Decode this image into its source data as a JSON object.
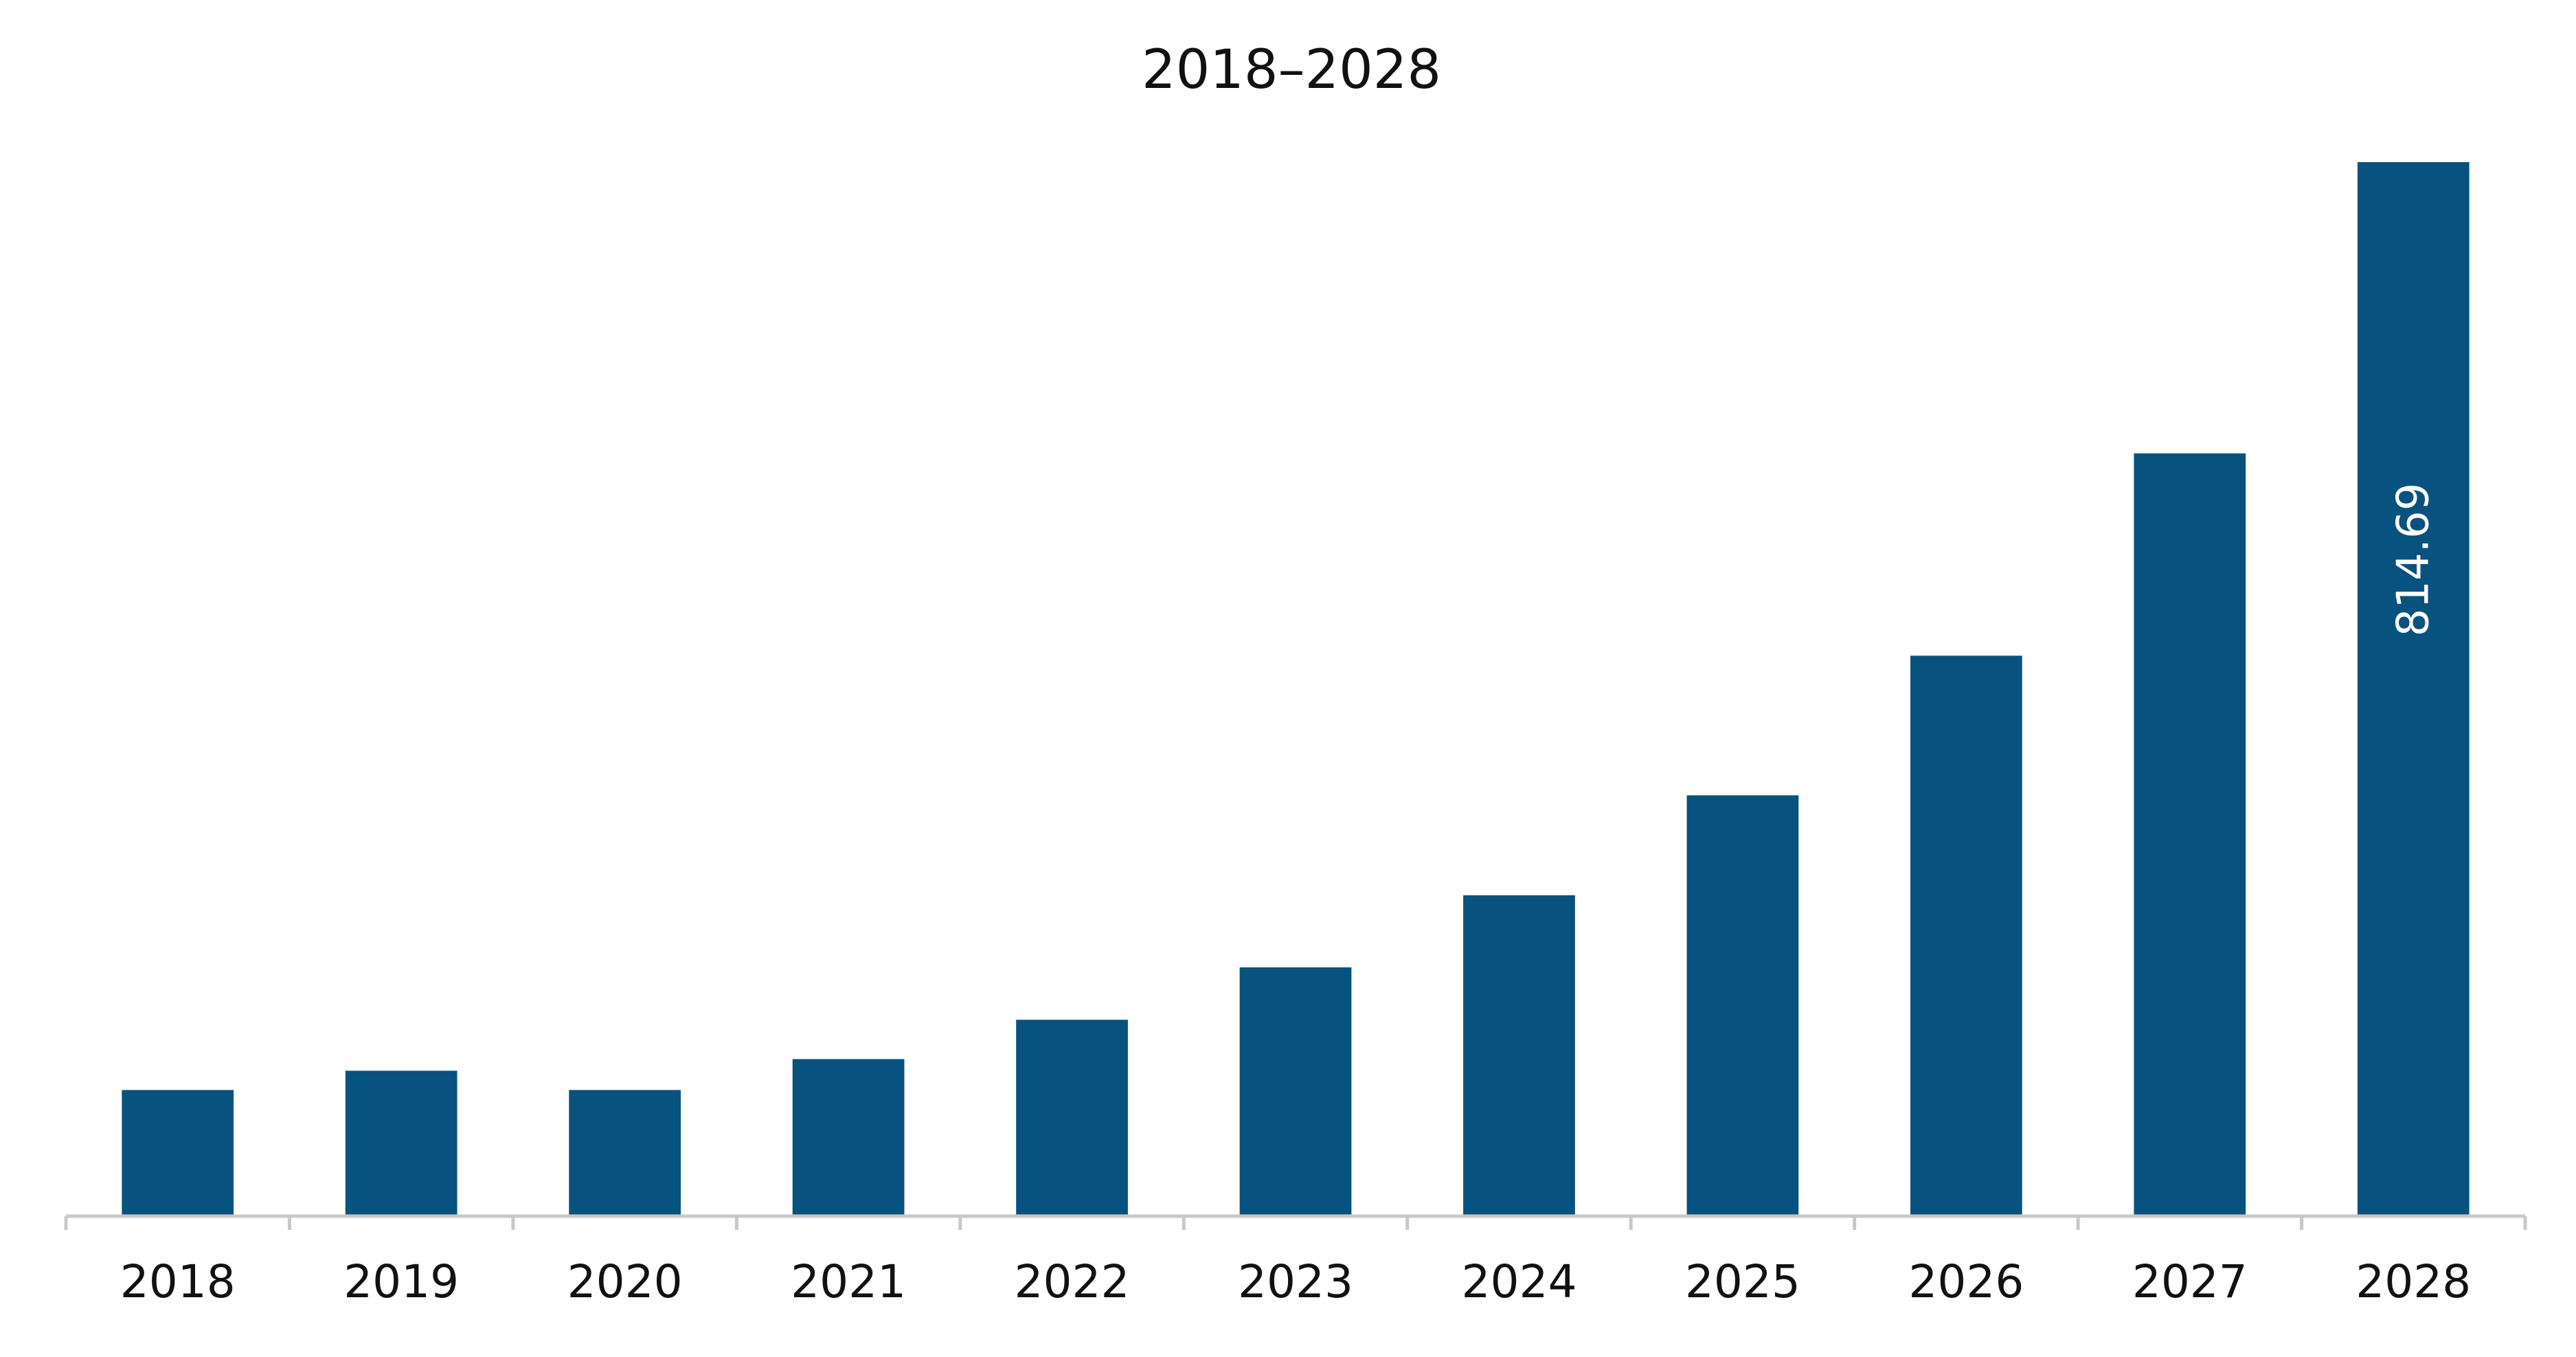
{
  "chart_data": {
    "type": "bar",
    "title": "2018–2028",
    "xlabel": "",
    "ylabel": "",
    "categories": [
      "2018",
      "2019",
      "2020",
      "2021",
      "2022",
      "2023",
      "2024",
      "2025",
      "2026",
      "2027",
      "2028"
    ],
    "series": [
      {
        "values": [
          97.5,
          112.4,
          97.5,
          121.4,
          151.8,
          192.3,
          248.0,
          325.3,
          433.2,
          589.6,
          814.69
        ]
      }
    ],
    "data_labels": [
      {
        "category": "2028",
        "text": "814.69",
        "orientation": "vertical"
      }
    ],
    "ylim": [
      0,
      814.69
    ],
    "grid": false,
    "legend": "none",
    "colors": {
      "bar": "#08527F",
      "axis": "#C8C8C8",
      "text": "#111111",
      "data_label": "#FFFFFF"
    }
  }
}
